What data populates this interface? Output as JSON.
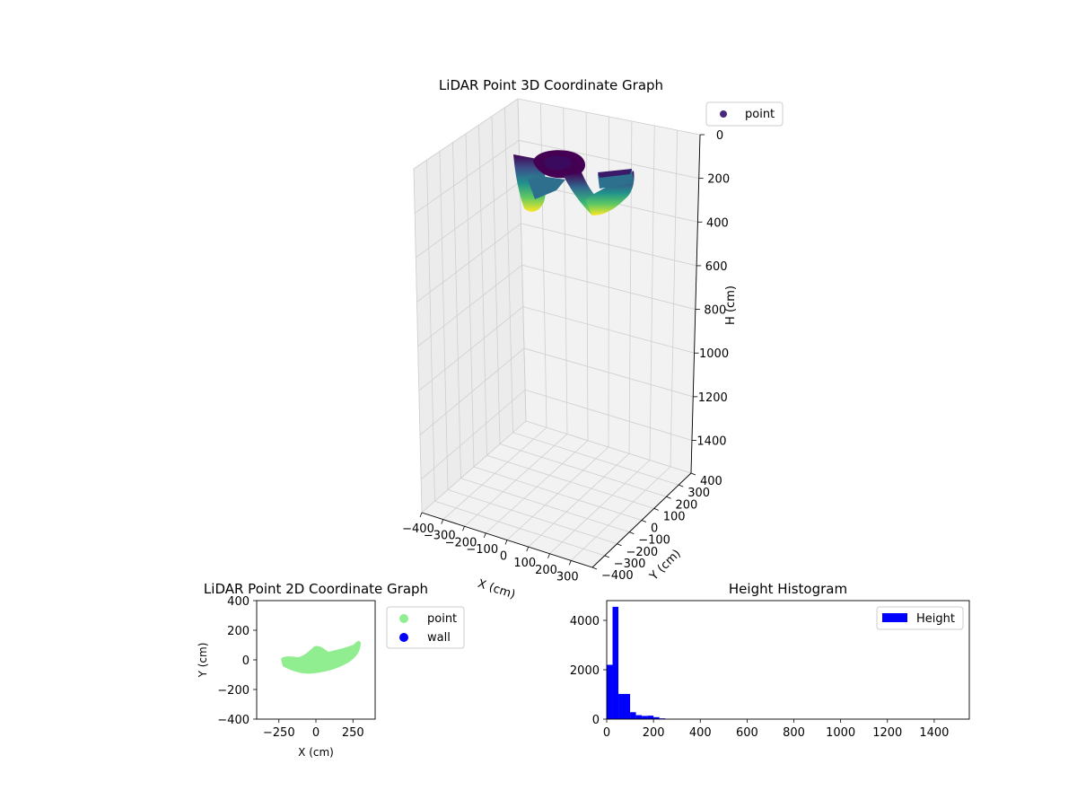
{
  "chart_data": [
    {
      "type": "scatter3d",
      "title": "LiDAR Point 3D Coordinate Graph",
      "xlabel": "X (cm)",
      "ylabel": "Y (cm)",
      "zlabel": "H (cm)",
      "xticks": [
        "−400",
        "−300",
        "−200",
        "−100",
        "0",
        "100",
        "200",
        "300"
      ],
      "yticks": [
        "−400",
        "−300",
        "−200",
        "−100",
        "0",
        "100",
        "200",
        "300",
        "400"
      ],
      "zticks": [
        "0",
        "200",
        "400",
        "600",
        "800",
        "1000",
        "1200",
        "1400"
      ],
      "xlim": [
        -400,
        400
      ],
      "ylim": [
        -400,
        400
      ],
      "zlim": [
        0,
        1550
      ],
      "z_inverted": true,
      "colormap": "viridis",
      "legend": {
        "position": "top-right",
        "entries": [
          "point"
        ]
      },
      "grid": true
    },
    {
      "type": "scatter",
      "title": "LiDAR Point 2D Coordinate Graph",
      "xlabel": "X (cm)",
      "ylabel": "Y (cm)",
      "xticks": [
        "−250",
        "0",
        "250"
      ],
      "yticks": [
        "400",
        "200",
        "0",
        "−200",
        "−400"
      ],
      "xlim": [
        -400,
        400
      ],
      "ylim": [
        -400,
        400
      ],
      "legend": {
        "position": "outside-right",
        "entries": [
          "point",
          "wall"
        ]
      },
      "series": [
        {
          "name": "point",
          "color": "#90ee90"
        },
        {
          "name": "wall",
          "color": "#0000ff"
        }
      ]
    },
    {
      "type": "bar",
      "title": "Height Histogram",
      "xticks": [
        "0",
        "200",
        "400",
        "600",
        "800",
        "1000",
        "1200",
        "1400"
      ],
      "yticks": [
        "0",
        "2000",
        "4000"
      ],
      "xlim": [
        0,
        1550
      ],
      "ylim": [
        0,
        4800
      ],
      "color": "#0000ff",
      "legend": {
        "position": "top-right",
        "entries": [
          "Height"
        ]
      },
      "series": [
        {
          "name": "Height",
          "bins": [
            {
              "start": 0,
              "end": 25,
              "count": 2200
            },
            {
              "start": 25,
              "end": 50,
              "count": 4550
            },
            {
              "start": 50,
              "end": 100,
              "count": 1020
            },
            {
              "start": 100,
              "end": 125,
              "count": 280
            },
            {
              "start": 125,
              "end": 150,
              "count": 160
            },
            {
              "start": 150,
              "end": 175,
              "count": 130
            },
            {
              "start": 175,
              "end": 200,
              "count": 140
            },
            {
              "start": 200,
              "end": 225,
              "count": 80
            },
            {
              "start": 225,
              "end": 250,
              "count": 30
            }
          ]
        }
      ]
    }
  ]
}
